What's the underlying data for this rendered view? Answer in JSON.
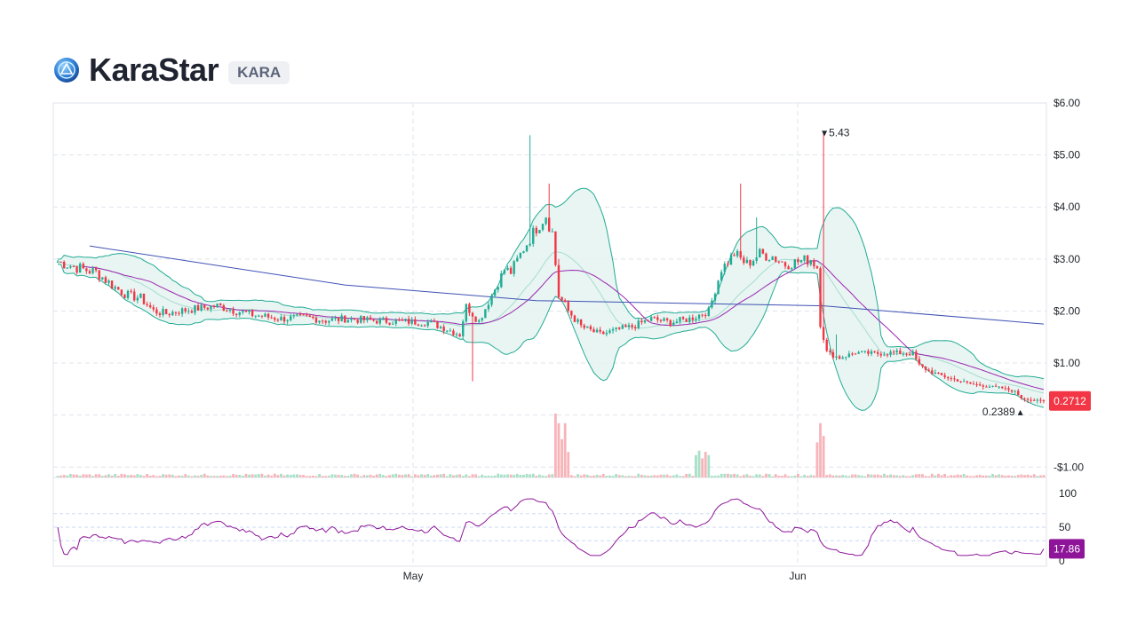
{
  "coin": {
    "name": "KaraStar",
    "symbol": "KARA"
  },
  "colors": {
    "up": "#22ab94",
    "down": "#f23645",
    "bb": "#22ab94",
    "bb_fill": "#e6f4f1",
    "sma_short": "#9c27b0",
    "sma_long": "#3f51b5",
    "rsi": "#8e1599",
    "grid": "#e0e3eb"
  },
  "chart_data": {
    "type": "line",
    "subtype": "candlestick",
    "price_axis": {
      "ticks": [
        6,
        5,
        4,
        3,
        2,
        1,
        0,
        -1
      ],
      "tick_labels": [
        "$6.00",
        "$5.00",
        "$4.00",
        "$3.00",
        "$2.00",
        "$1.00",
        "",
        "-$1.00"
      ],
      "ylim": [
        -1.2,
        6.0
      ]
    },
    "time_axis": {
      "labels": [
        "May",
        "Jun"
      ]
    },
    "high_marker": {
      "label": "5.43",
      "value": 5.43
    },
    "low_marker": {
      "label": "0.2389",
      "value": 0.2389
    },
    "last_price": {
      "label": "0.2712",
      "value": 0.2712
    },
    "rsi": {
      "ticks": [
        100,
        50,
        0
      ],
      "tick_labels": [
        "100",
        "50",
        "0"
      ],
      "levels": [
        70,
        30
      ],
      "last": 17.86,
      "last_label": "17.86"
    },
    "anchors": [
      [
        0,
        2.95
      ],
      [
        8,
        2.8
      ],
      [
        12,
        2.75
      ],
      [
        15,
        2.6
      ],
      [
        18,
        2.45
      ],
      [
        22,
        2.3
      ],
      [
        26,
        2.25
      ],
      [
        30,
        2.0
      ],
      [
        34,
        1.95
      ],
      [
        38,
        2.0
      ],
      [
        44,
        2.05
      ],
      [
        50,
        2.1
      ],
      [
        56,
        2.0
      ],
      [
        62,
        1.92
      ],
      [
        70,
        1.85
      ],
      [
        78,
        1.88
      ],
      [
        84,
        1.82
      ],
      [
        90,
        1.85
      ],
      [
        98,
        1.82
      ],
      [
        108,
        1.8
      ],
      [
        116,
        1.78
      ],
      [
        120,
        1.7
      ],
      [
        126,
        1.55
      ],
      [
        128,
        2.1
      ],
      [
        132,
        1.8
      ],
      [
        136,
        2.3
      ],
      [
        140,
        2.8
      ],
      [
        142,
        2.75
      ],
      [
        146,
        3.2
      ],
      [
        150,
        3.6
      ],
      [
        153,
        3.85
      ],
      [
        155,
        3.5
      ],
      [
        157,
        2.3
      ],
      [
        160,
        2.0
      ],
      [
        164,
        1.7
      ],
      [
        170,
        1.55
      ],
      [
        176,
        1.65
      ],
      [
        180,
        1.7
      ],
      [
        186,
        1.85
      ],
      [
        192,
        1.78
      ],
      [
        198,
        1.85
      ],
      [
        204,
        2.0
      ],
      [
        208,
        2.8
      ],
      [
        212,
        3.1
      ],
      [
        216,
        2.9
      ],
      [
        220,
        3.1
      ],
      [
        224,
        3.05
      ],
      [
        228,
        2.9
      ],
      [
        232,
        2.95
      ],
      [
        236,
        3.0
      ],
      [
        238,
        2.85
      ],
      [
        239,
        1.8
      ],
      [
        241,
        1.2
      ],
      [
        245,
        1.1
      ],
      [
        250,
        1.2
      ],
      [
        256,
        1.18
      ],
      [
        262,
        1.2
      ],
      [
        268,
        1.18
      ],
      [
        270,
        0.95
      ],
      [
        274,
        0.82
      ],
      [
        280,
        0.7
      ],
      [
        286,
        0.6
      ],
      [
        292,
        0.55
      ],
      [
        296,
        0.52
      ],
      [
        300,
        0.45
      ],
      [
        302,
        0.33
      ],
      [
        306,
        0.28
      ],
      [
        309,
        0.27
      ]
    ],
    "spikes": [
      [
        148,
        5.38
      ],
      [
        154,
        4.45
      ],
      [
        157,
        3.0
      ],
      [
        130,
        0.65
      ],
      [
        197,
        1.85
      ],
      [
        214,
        4.45
      ],
      [
        219,
        3.8
      ],
      [
        240,
        5.43
      ],
      [
        244,
        1.55
      ]
    ],
    "volume_spikes": [
      [
        156,
        1.0
      ],
      [
        157,
        0.85
      ],
      [
        158,
        0.6
      ],
      [
        159,
        0.85
      ],
      [
        160,
        0.4
      ],
      [
        200,
        0.35
      ],
      [
        201,
        0.42
      ],
      [
        202,
        0.3
      ],
      [
        203,
        0.4
      ],
      [
        204,
        0.35
      ],
      [
        238,
        0.55
      ],
      [
        239,
        0.85
      ],
      [
        240,
        0.65
      ]
    ],
    "sma_long": [
      [
        10,
        3.25
      ],
      [
        90,
        2.5
      ],
      [
        150,
        2.2
      ],
      [
        240,
        2.1
      ],
      [
        309,
        1.75
      ]
    ]
  }
}
